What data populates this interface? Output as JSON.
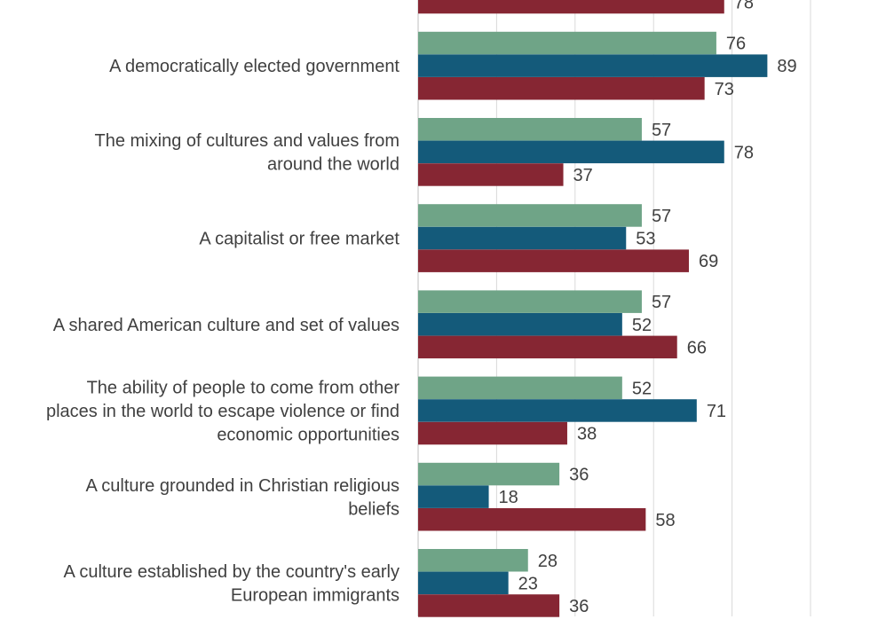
{
  "chart_data": {
    "type": "bar",
    "orientation": "horizontal",
    "colors": [
      "#6fa487",
      "#145a7a",
      "#862633"
    ],
    "axis_range": [
      0,
      100
    ],
    "gridlines": [
      0,
      20,
      40,
      60,
      80,
      100
    ],
    "grid": true,
    "categories": [
      "",
      "A democratically elected government",
      "The mixing of cultures and values from around the world",
      "A capitalist or free market",
      "A shared American culture and set of values",
      "The ability of people to come from other places in the world to escape violence or find economic opportunities",
      "A culture grounded in Christian religious beliefs",
      "A culture established by the country's early European immigrants"
    ],
    "category_lines": [
      [],
      [
        "A democratically elected government"
      ],
      [
        "The mixing of cultures and values from",
        "around the world"
      ],
      [
        "A capitalist or free market"
      ],
      [
        "A shared American culture and set of values"
      ],
      [
        "The ability of people to come from other",
        "places in the world to escape violence or find",
        "economic opportunities"
      ],
      [
        "A culture grounded in Christian religious",
        "beliefs"
      ],
      [
        "A culture established by the country's early",
        "European immigrants"
      ]
    ],
    "series": [
      {
        "values": [
          null,
          76,
          57,
          57,
          57,
          52,
          36,
          28
        ]
      },
      {
        "values": [
          null,
          89,
          78,
          53,
          52,
          71,
          18,
          23
        ]
      },
      {
        "values": [
          78,
          73,
          37,
          69,
          66,
          38,
          58,
          36
        ]
      }
    ]
  }
}
